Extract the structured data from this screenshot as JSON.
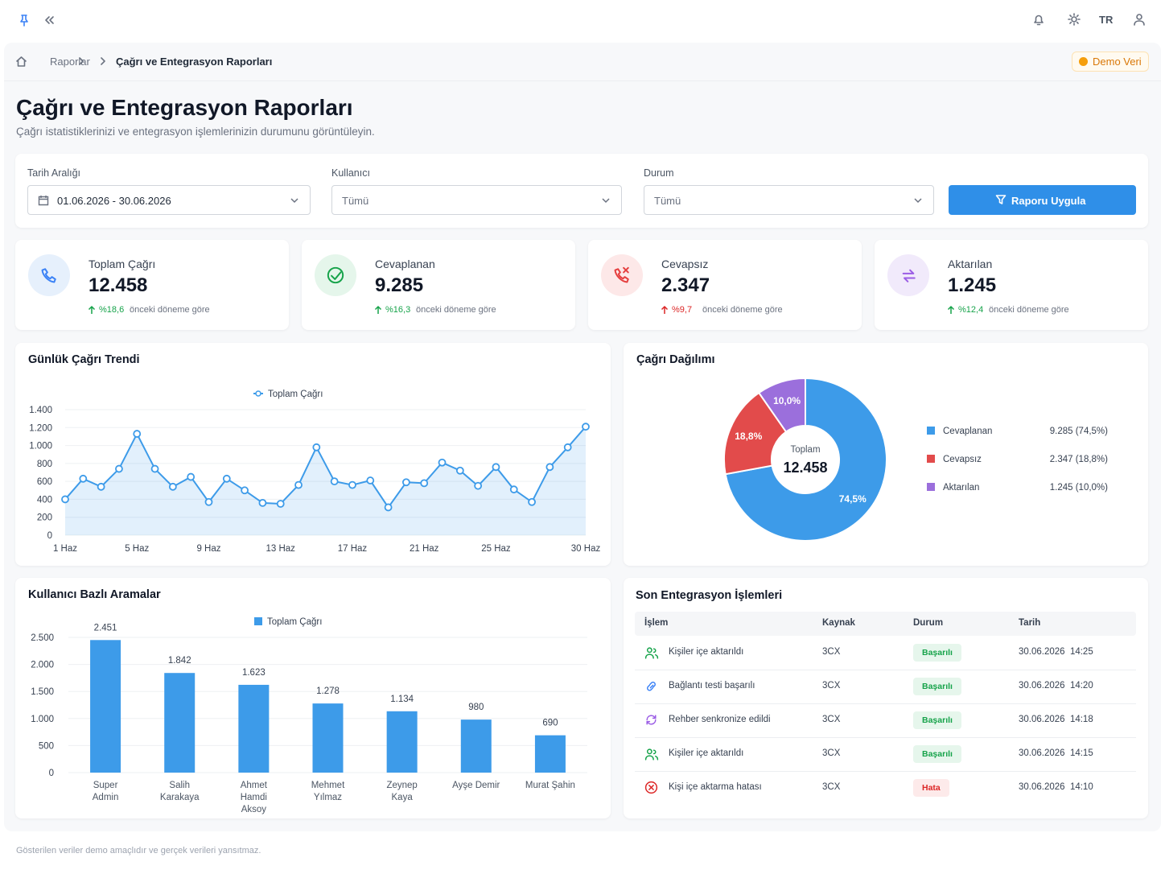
{
  "topbar": {
    "language": "TR"
  },
  "breadcrumb": [
    "Raporlar",
    "Çağrı ve Entegrasyon Raporları"
  ],
  "badge": "Demo Veri",
  "header": {
    "title": "Çağrı ve Entegrasyon Raporları",
    "subtitle": "Çağrı istatistiklerinizi ve entegrasyon işlemlerinizin durumunu görüntüleyin."
  },
  "filters": [
    {
      "label": "Tarih Aralığı",
      "value": "01.06.2026 - 30.06.2026"
    },
    {
      "label": "Kullanıcı",
      "value": "Tümü"
    },
    {
      "label": "Durum",
      "value": "Tümü"
    }
  ],
  "apply_button": "Raporu Uygula",
  "kpis": [
    {
      "title": "Toplam Çağrı",
      "value": "12.458",
      "change": "%18,6",
      "note": "önceki döneme göre",
      "change_color": "#16a34a",
      "icon_color": "#3b82f6",
      "icon_bg": "#e6f0fc"
    },
    {
      "title": "Cevaplanan",
      "value": "9.285",
      "change": "%16,3",
      "note": "önceki döneme göre",
      "change_color": "#16a34a",
      "icon_color": "#16a34a",
      "icon_bg": "#e5f6eb"
    },
    {
      "title": "Cevapsız",
      "value": "2.347",
      "change": "%9,7",
      "note": "önceki döneme göre",
      "change_color": "#dc2626",
      "icon_color": "#e53e3e",
      "icon_bg": "#fde8e8"
    },
    {
      "title": "Aktarılan",
      "value": "1.245",
      "change": "%12,4",
      "note": "önceki döneme göre",
      "change_color": "#16a34a",
      "icon_color": "#9b5de5",
      "icon_bg": "#f1eafb"
    }
  ],
  "chart_data": [
    {
      "type": "line",
      "title": "Günlük Çağrı Trendi",
      "categories": [
        "1 Haz",
        null,
        null,
        null,
        "5 Haz",
        null,
        null,
        null,
        "9 Haz",
        null,
        null,
        null,
        "13 Haz",
        null,
        null,
        null,
        "17 Haz",
        null,
        null,
        null,
        "21 Haz",
        null,
        null,
        null,
        "25 Haz",
        null,
        null,
        null,
        null,
        "30 Haz"
      ],
      "series": [
        {
          "name": "Toplam Çağrı",
          "color": "#3d9be9",
          "values": [
            400,
            630,
            540,
            740,
            1130,
            740,
            540,
            650,
            370,
            630,
            500,
            360,
            350,
            560,
            980,
            600,
            560,
            610,
            310,
            590,
            580,
            810,
            720,
            550,
            760,
            510,
            370,
            760,
            980,
            1210
          ]
        }
      ],
      "ylim": [
        0,
        1400
      ],
      "yticks": [
        0,
        200,
        400,
        600,
        800,
        {
          "value": 1000,
          "label": "1.000"
        },
        {
          "value": 1200,
          "label": "1.200"
        },
        {
          "value": 1400,
          "label": "1.400"
        }
      ],
      "grid": true,
      "legend": "top"
    },
    {
      "type": "pie",
      "title": "Çağrı Dağılımı",
      "donut": true,
      "center_label": "Toplam",
      "center_value": "12.458",
      "categories": [
        "Cevaplanan",
        "Cevapsız",
        "Aktarılan"
      ],
      "values": [
        74.5,
        18.8,
        10.0
      ],
      "value_labels": [
        "74,5%",
        "18,8%",
        "10,0%"
      ],
      "legend_values": [
        "9.285 (74,5%)",
        "2.347 (18,8%)",
        "1.245 (10,0%)"
      ],
      "colors": [
        "#3d9be9",
        "#e24b4b",
        "#9b6fdc"
      ],
      "legend": "right"
    },
    {
      "type": "bar",
      "title": "Kullanıcı Bazlı Aramalar",
      "categories": [
        "Super Admin",
        "Salih Karakaya",
        "Ahmet Hamdi Aksoy",
        "Mehmet Yılmaz",
        "Zeynep Kaya",
        "Ayşe Demir",
        "Murat Şahin"
      ],
      "series": [
        {
          "name": "Toplam Çağrı",
          "color": "#3d9be9",
          "values": [
            2451,
            1842,
            1623,
            1278,
            1134,
            980,
            690
          ],
          "value_labels": [
            "2.451",
            "1.842",
            "1.623",
            "1.278",
            "1.134",
            "980",
            "690"
          ]
        }
      ],
      "ylim": [
        0,
        2500
      ],
      "yticks": [
        0,
        500,
        {
          "value": 1000,
          "label": "1.000"
        },
        {
          "value": 1500,
          "label": "1.500"
        },
        {
          "value": 2000,
          "label": "2.000"
        },
        {
          "value": 2500,
          "label": "2.500"
        }
      ],
      "grid": true,
      "legend": "top"
    }
  ],
  "table": {
    "title": "Son Entegrasyon İşlemleri",
    "columns": [
      "İşlem",
      "Kaynak",
      "Durum",
      "Tarih"
    ],
    "rows": [
      [
        "Kişiler içe aktarıldı",
        "3CX",
        "Başarılı",
        "30.06.2026  14:25"
      ],
      [
        "Bağlantı testi başarılı",
        "3CX",
        "Başarılı",
        "30.06.2026  14:20"
      ],
      [
        "Rehber senkronize edildi",
        "3CX",
        "Başarılı",
        "30.06.2026  14:18"
      ],
      [
        "Kişiler içe aktarıldı",
        "3CX",
        "Başarılı",
        "30.06.2026  14:15"
      ],
      [
        "Kişi içe aktarma hatası",
        "3CX",
        "Hata",
        "30.06.2026  14:10"
      ]
    ],
    "status_colors": {
      "Başarılı": [
        "#16a34a",
        "#e6f6ec"
      ],
      "Hata": [
        "#dc2626",
        "#fdeaea"
      ]
    }
  },
  "footer": "Gösterilen veriler demo amaçlıdır ve gerçek verileri yansıtmaz."
}
